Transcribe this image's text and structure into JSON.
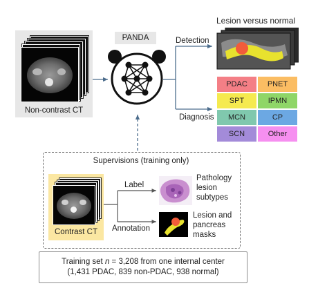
{
  "inputs": {
    "noncontrast_label": "Non-contrast CT"
  },
  "model": {
    "name": "PANDA"
  },
  "outputs": {
    "detection_label": "Detection",
    "lesion_title": "Lesion versus normal",
    "diagnosis_label": "Diagnosis",
    "classes": [
      {
        "label": "PDAC",
        "color": "#f47f86"
      },
      {
        "label": "PNET",
        "color": "#fbbd63"
      },
      {
        "label": "SPT",
        "color": "#f5ea4f"
      },
      {
        "label": "IPMN",
        "color": "#8fd667"
      },
      {
        "label": "MCN",
        "color": "#80c8ae"
      },
      {
        "label": "CP",
        "color": "#6ca8e3"
      },
      {
        "label": "SCN",
        "color": "#a38bd9"
      },
      {
        "label": "Other",
        "color": "#f68ff0"
      }
    ]
  },
  "supervision": {
    "title": "Supervisions (training only)",
    "contrast_label": "Contrast CT",
    "label_text": "Label",
    "annotation_text": "Annotation",
    "pathology_lines": [
      "Pathology",
      "lesion",
      "subtypes"
    ],
    "masks_lines": [
      "Lesion and",
      "pancreas",
      "masks"
    ]
  },
  "training": {
    "line1_prefix": "Training set ",
    "line1_var": "n",
    "line1_rest": " = 3,208 from one internal center",
    "line2": "(1,431 PDAC, 839 non-PDAC, 938 normal)"
  }
}
